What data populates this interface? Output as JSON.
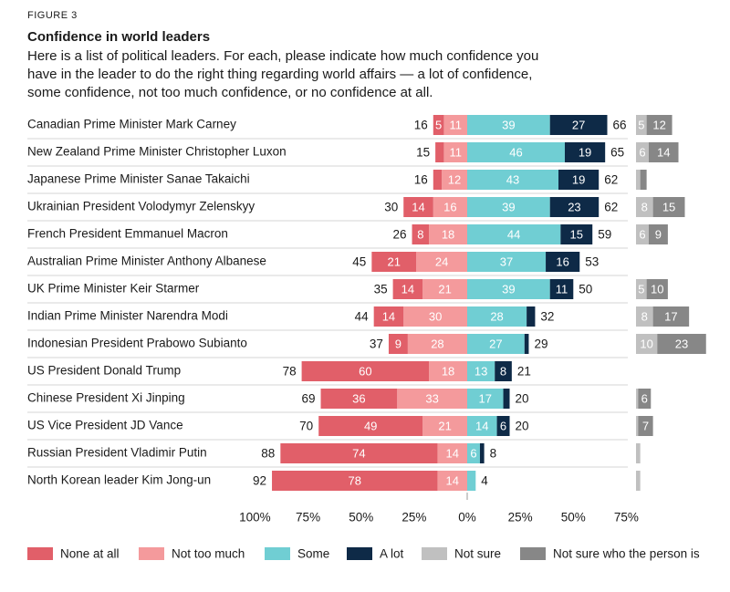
{
  "chart_data": {
    "type": "diverging_bar",
    "figure_label": "FIGURE 3",
    "title": "Confidence in world leaders",
    "subtitle": [
      "Here is a list of political leaders. For each, please indicate how much confidence you",
      "have in the leader to do the right thing regarding world affairs — a lot of confidence,",
      "some confidence, not too much confidence, or no confidence at all."
    ],
    "categories": [
      "Canadian Prime Minister Mark Carney",
      "New Zealand Prime Minister Christopher Luxon",
      "Japanese Prime Minister Sanae Takaichi",
      "Ukrainian President Volodymyr Zelenskyy",
      "French President Emmanuel Macron",
      "Australian Prime Minister Anthony Albanese",
      "UK Prime Minister Keir Starmer",
      "Indian Prime Minister Narendra Modi",
      "Indonesian President Prabowo Subianto",
      "US President Donald Trump",
      "Chinese President Xi Jinping",
      "US Vice President JD Vance",
      "Russian President Vladimir Putin",
      "North Korean leader Kim Jong-un"
    ],
    "series": [
      {
        "name": "None at all",
        "color": "#e15f69",
        "values": [
          5,
          4,
          4,
          14,
          8,
          21,
          14,
          14,
          9,
          60,
          36,
          49,
          74,
          78
        ],
        "value_labels": [
          "5",
          null,
          null,
          "14",
          "8",
          "21",
          "14",
          "14",
          "9",
          "60",
          "36",
          "49",
          "74",
          "78"
        ]
      },
      {
        "name": "Not too much",
        "color": "#f49a9c",
        "values": [
          11,
          11,
          12,
          16,
          18,
          24,
          21,
          30,
          28,
          18,
          33,
          21,
          14,
          14
        ],
        "value_labels": [
          "11",
          "11",
          "12",
          "16",
          "18",
          "24",
          "21",
          "30",
          "28",
          "18",
          "33",
          "21",
          "14",
          "14"
        ]
      },
      {
        "name": "Some",
        "color": "#70ced3",
        "values": [
          39,
          46,
          43,
          39,
          44,
          37,
          39,
          28,
          27,
          13,
          17,
          14,
          6,
          4
        ],
        "value_labels": [
          "39",
          "46",
          "43",
          "39",
          "44",
          "37",
          "39",
          "28",
          "27",
          "13",
          "17",
          "14",
          "6",
          null
        ]
      },
      {
        "name": "A lot",
        "color": "#0e2a47",
        "values": [
          27,
          19,
          19,
          23,
          15,
          16,
          11,
          4,
          2,
          8,
          3,
          6,
          2,
          null
        ],
        "value_labels": [
          "27",
          "19",
          "19",
          "23",
          "15",
          "16",
          "11",
          null,
          null,
          "8",
          null,
          "6",
          null,
          null
        ]
      },
      {
        "name": "Not sure",
        "color": "#c0c0c0",
        "values": [
          5,
          6,
          2,
          8,
          6,
          null,
          5,
          8,
          10,
          null,
          1,
          1,
          2,
          2
        ],
        "value_labels": [
          "5",
          "6",
          null,
          "8",
          "6",
          null,
          "5",
          "8",
          "10",
          null,
          null,
          null,
          null,
          null
        ]
      },
      {
        "name": "Not sure who the person is",
        "color": "#878787",
        "values": [
          12,
          14,
          3,
          15,
          9,
          null,
          10,
          17,
          23,
          null,
          6,
          7,
          null,
          null
        ],
        "value_labels": [
          "12",
          "14",
          null,
          "15",
          "9",
          null,
          "10",
          "17",
          "23",
          null,
          "6",
          "7",
          null,
          null
        ]
      }
    ],
    "negative_totals": [
      16,
      15,
      16,
      30,
      26,
      45,
      35,
      44,
      37,
      78,
      69,
      70,
      88,
      92
    ],
    "positive_totals": [
      66,
      65,
      62,
      62,
      59,
      53,
      50,
      32,
      29,
      21,
      20,
      20,
      8,
      4
    ],
    "xlim": [
      -100,
      75
    ],
    "xticks": [
      {
        "value": -100,
        "label": "100%"
      },
      {
        "value": -75,
        "label": "75%"
      },
      {
        "value": -50,
        "label": "50%"
      },
      {
        "value": -25,
        "label": "25%"
      },
      {
        "value": 0,
        "label": "0%"
      },
      {
        "value": 25,
        "label": "25%"
      },
      {
        "value": 50,
        "label": "50%"
      },
      {
        "value": 75,
        "label": "75%"
      }
    ],
    "legend": "bottom"
  }
}
